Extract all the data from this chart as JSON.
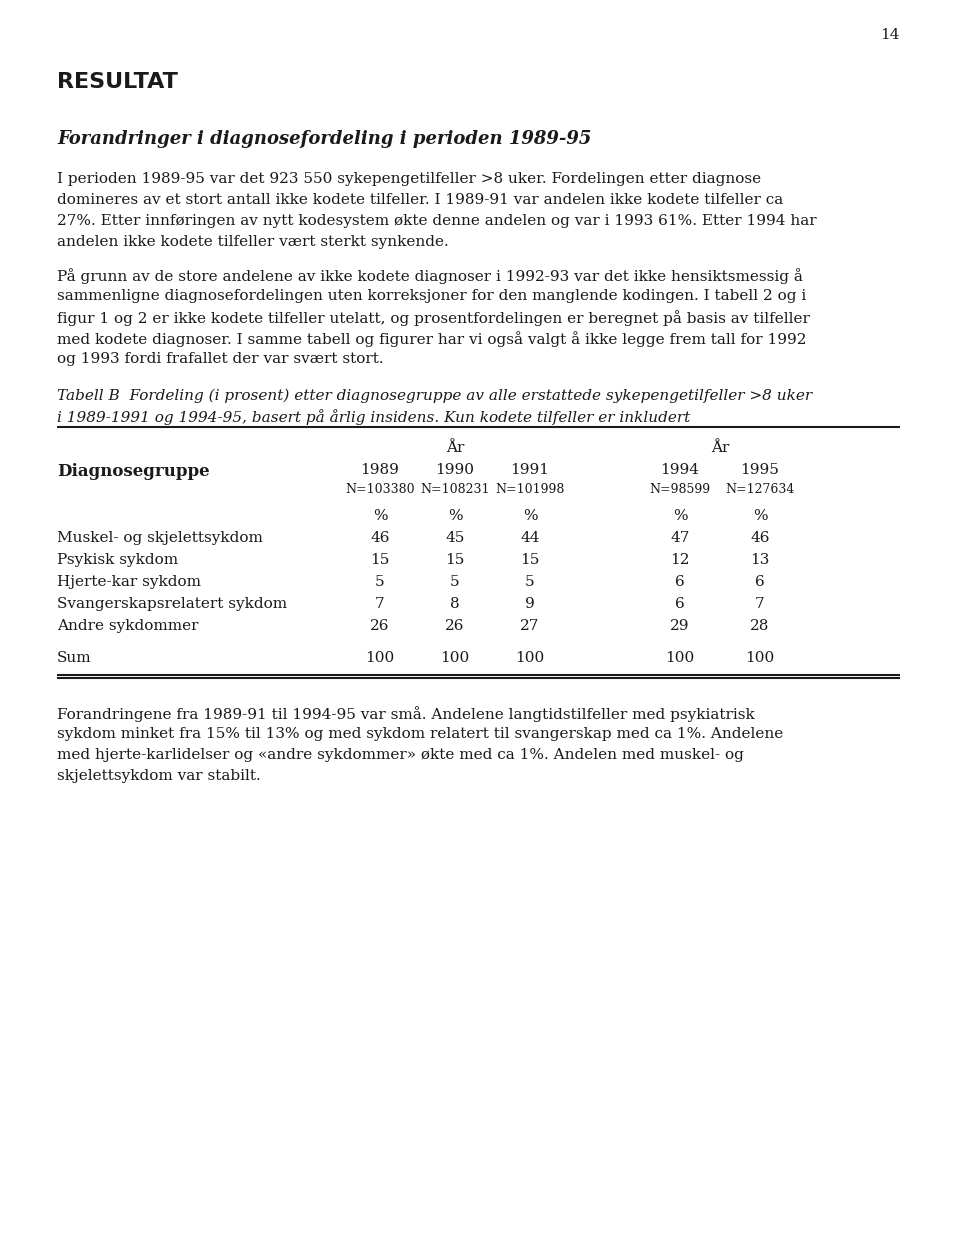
{
  "page_number": "14",
  "bg_color": "#ffffff",
  "text_color": "#1a1a1a",
  "heading1": "RESULTAT",
  "heading2": "Forandringer i diagnosefordeling i perioden 1989-95",
  "para1a": "I perioden 1989-95 var det 923 550 sykepengetilfeller >8 uker. Fordelingen etter diagnose",
  "para1b": "domineres av et stort antall ikke kodete tilfeller. I 1989-91 var andelen ikke kodete tilfeller ca",
  "para1c": "27%. Etter innføringen av nytt kodesystem økte denne andelen og var i 1993 61%. Etter 1994 har",
  "para1d": "andelen ikke kodete tilfeller vært sterkt synkende.",
  "para2a": "På grunn av de store andelene av ikke kodete diagnoser i 1992-93 var det ikke hensiktsmessig å",
  "para2b": "sammenligne diagnosefordelingen uten korreksjoner for den manglende kodingen. I tabell 2 og i",
  "para2c": "figur 1 og 2 er ikke kodete tilfeller utelatt, og prosentfordelingen er beregnet på basis av tilfeller",
  "para2d": "med kodete diagnoser. I samme tabell og figurer har vi også valgt å ikke legge frem tall for 1992",
  "para2e": "og 1993 fordi frafallet der var svært stort.",
  "caption1": "Tabell B  Fordeling (i prosent) etter diagnosegruppe av alle erstattede sykepengetilfeller >8 uker",
  "caption2": "i 1989-1991 og 1994-95, basert på årlig insidens. Kun kodete tilfeller er inkludert",
  "col_header_label": "Diagnosegruppe",
  "year_group1_label": "År",
  "year_group2_label": "År",
  "years": [
    "1989",
    "1990",
    "1991",
    "1994",
    "1995"
  ],
  "ns": [
    "N=103380",
    "N=108231",
    "N=101998",
    "N=98599",
    "N=127634"
  ],
  "pct_symbol": "%",
  "rows": [
    {
      "label": "Muskel- og skjelettsykdom",
      "values": [
        "46",
        "45",
        "44",
        "47",
        "46"
      ]
    },
    {
      "label": "Psykisk sykdom",
      "values": [
        "15",
        "15",
        "15",
        "12",
        "13"
      ]
    },
    {
      "label": "Hjerte-kar sykdom",
      "values": [
        "5",
        "5",
        "5",
        "6",
        "6"
      ]
    },
    {
      "label": "Svangerskapsrelatert sykdom",
      "values": [
        "7",
        "8",
        "9",
        "6",
        "7"
      ]
    },
    {
      "label": "Andre sykdommer",
      "values": [
        "26",
        "26",
        "27",
        "29",
        "28"
      ]
    }
  ],
  "sum_label": "Sum",
  "sum_values": [
    "100",
    "100",
    "100",
    "100",
    "100"
  ],
  "para3a": "Forandringene fra 1989-91 til 1994-95 var små. Andelene langtidstilfeller med psykiatrisk",
  "para3b": "sykdom minket fra 15% til 13% og med sykdom relatert til svangerskap med ca 1%. Andelene",
  "para3c": "med hjerte-karlidelser og «andre sykdommer» økte med ca 1%. Andelen med muskel- og",
  "para3d": "skjelettsykdom var stabilt."
}
